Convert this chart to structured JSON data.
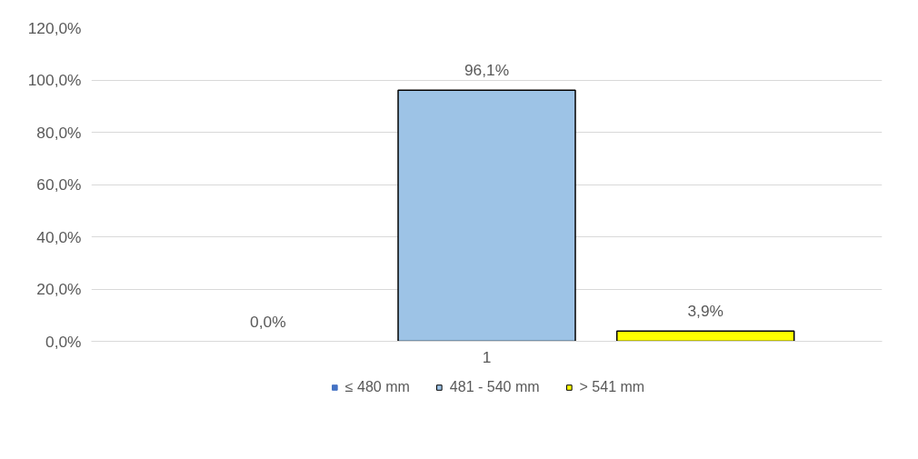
{
  "chart_data": {
    "type": "bar",
    "categories": [
      "1"
    ],
    "series": [
      {
        "name": "≤ 480 mm",
        "color": "#4472c4",
        "values": [
          0.0
        ]
      },
      {
        "name": "481 - 540 mm",
        "color": "#9dc3e6",
        "values": [
          96.1
        ]
      },
      {
        "name": "> 541 mm",
        "color": "#ffff00",
        "values": [
          3.9
        ]
      }
    ],
    "value_labels": [
      [
        "0,0%"
      ],
      [
        "96,1%"
      ],
      [
        "3,9%"
      ]
    ],
    "ylim": [
      0,
      120
    ],
    "yticks": [
      {
        "value": 0,
        "label": "0,0%"
      },
      {
        "value": 20,
        "label": "20,0%"
      },
      {
        "value": 40,
        "label": "40,0%"
      },
      {
        "value": 60,
        "label": "60,0%"
      },
      {
        "value": 80,
        "label": "80,0%"
      },
      {
        "value": 100,
        "label": "100,0%"
      },
      {
        "value": 120,
        "label": "120,0%"
      }
    ],
    "grid": "y",
    "legend": "bottom"
  }
}
